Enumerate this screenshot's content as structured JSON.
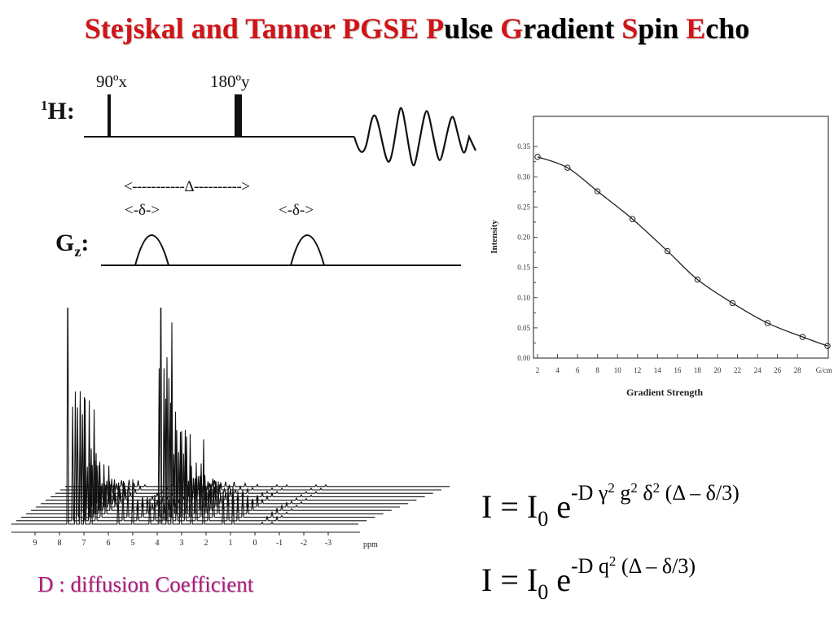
{
  "title": {
    "part1": "Stejskal and Tanner PGSE ",
    "p": "P",
    "ulse": "ulse ",
    "g": "G",
    "radient": "radient ",
    "s": "S",
    "pin": "pin ",
    "e": "E",
    "cho": "cho"
  },
  "pulse_sequence": {
    "pulse1_label": "90ºx",
    "pulse2_label": "180ºy",
    "h_label_sup": "1",
    "h_label": "H:",
    "big_delta_label": "<-----------Δ---------->",
    "small_delta_label_1": "<-δ->",
    "small_delta_label_2": "<-δ->",
    "gz_label": "G",
    "gz_sub": "z",
    "gz_colon": ":"
  },
  "spectrum": {
    "axis_ticks": [
      "9",
      "8",
      "7",
      "6",
      "5",
      "4",
      "3",
      "2",
      "1",
      "0",
      "-1",
      "-2",
      "-3"
    ],
    "axis_unit": "ppm"
  },
  "caption": "D : diffusion Coefficient",
  "equation1": {
    "lhs": "I = I",
    "sub": "0",
    "base": " e",
    "exp_a": "-D γ",
    "exp_sup1": "2",
    "exp_b": " g",
    "exp_sup2": "2",
    "exp_c": " δ",
    "exp_sup3": "2",
    "exp_d": " (Δ – δ/3)"
  },
  "equation2": {
    "lhs": "I = I",
    "sub": "0",
    "base": " e",
    "exp_a": "-D q",
    "exp_sup1": "2",
    "exp_b": " (Δ – δ/3)"
  },
  "chart_data": {
    "type": "line",
    "xlabel": "Gradient Strength",
    "ylabel": "Intensity",
    "x_tick_labels": [
      "2",
      "4",
      "6",
      "8",
      "10",
      "12",
      "14",
      "16",
      "18",
      "20",
      "22",
      "24",
      "26",
      "28",
      "G/cm"
    ],
    "y_tick_labels": [
      "0.00",
      "0.05",
      "0.10",
      "0.15",
      "0.20",
      "0.25",
      "0.30",
      "0.35"
    ],
    "xlim": [
      2,
      31
    ],
    "ylim": [
      0,
      0.4
    ],
    "series": [
      {
        "x": [
          2,
          5,
          8,
          11.5,
          15,
          18,
          21.5,
          25,
          28.5,
          32
        ],
        "y": [
          0.333,
          0.315,
          0.276,
          0.23,
          0.177,
          0.13,
          0.091,
          0.058,
          0.035,
          0.02
        ]
      }
    ]
  }
}
